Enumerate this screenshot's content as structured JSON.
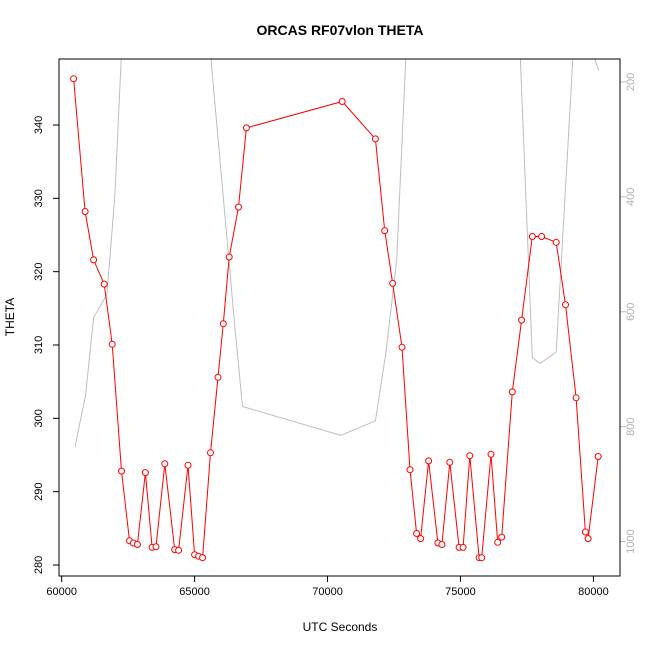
{
  "chart_data": {
    "type": "line",
    "title": "ORCAS RF07vlon THETA",
    "xlabel": "UTC Seconds",
    "ylabel": "THETA",
    "xlim": [
      59900,
      81000
    ],
    "ylim": [
      278.5,
      349.0
    ],
    "y2lim": [
      1060,
      160
    ],
    "x_ticks": [
      60000,
      65000,
      70000,
      75000,
      80000
    ],
    "y_ticks": [
      280,
      290,
      300,
      310,
      320,
      330,
      340
    ],
    "y2_ticks": [
      200,
      400,
      600,
      800,
      1000
    ],
    "colors": {
      "theta": "#ff0000",
      "secondary": "#bebebe",
      "axis": "#000000"
    },
    "series": [
      {
        "x": [
          60450,
          60880,
          61200,
          61600,
          61900,
          62250,
          62550,
          62700,
          62850,
          63150,
          63400,
          63550,
          63880,
          64250,
          64400,
          64750,
          65000,
          65150,
          65300,
          65600,
          65880,
          66080,
          66300,
          66650,
          66950,
          70550,
          71800,
          72150,
          72450,
          72800,
          73100,
          73350,
          73500,
          73800,
          74150,
          74300,
          74600,
          74950,
          75100,
          75350,
          75700,
          75800,
          76150,
          76400,
          76550,
          76950,
          77300,
          77700,
          78050,
          78600,
          78950,
          79350,
          79700,
          79800,
          80180
        ],
        "values": [
          346.3,
          328.2,
          321.6,
          318.3,
          310.1,
          292.8,
          283.3,
          283.0,
          282.8,
          292.6,
          282.4,
          282.5,
          293.8,
          282.1,
          282.0,
          293.6,
          281.4,
          281.2,
          281.0,
          295.3,
          305.6,
          312.9,
          322.0,
          328.8,
          339.6,
          343.2,
          338.1,
          325.6,
          318.4,
          309.7,
          293.0,
          284.3,
          283.6,
          294.2,
          283.0,
          282.8,
          294.0,
          282.4,
          282.4,
          294.9,
          281.0,
          281.0,
          295.1,
          283.1,
          283.8,
          303.6,
          313.4,
          324.8,
          324.8,
          324.0,
          315.5,
          302.8,
          284.5,
          283.6,
          294.8
        ]
      },
      {
        "x": [
          60500,
          60900,
          61200,
          61700,
          62000,
          62300,
          64500,
          65500,
          66500,
          66800,
          70500,
          71800,
          72200,
          72600,
          73000,
          77200,
          77700,
          78000,
          78600,
          79300,
          79600,
          80200
        ],
        "values": [
          835,
          745,
          610,
          570,
          400,
          100,
          100,
          100,
          620,
          765,
          815,
          790,
          670,
          510,
          100,
          100,
          680,
          690,
          670,
          100,
          100,
          180
        ]
      }
    ]
  }
}
